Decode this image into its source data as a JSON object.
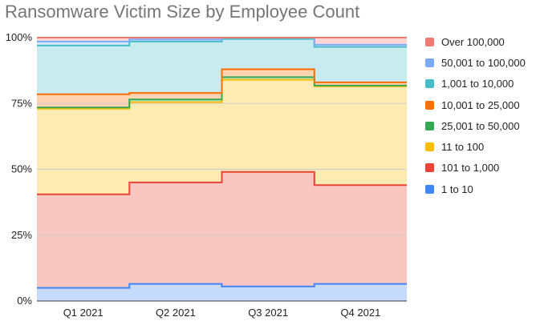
{
  "chart_data": {
    "type": "area",
    "title": "Ransomware Victim Size by Employee Count",
    "step": true,
    "stacked": true,
    "percent": true,
    "categories": [
      "Q1 2021",
      "Q2 2021",
      "Q3 2021",
      "Q4 2021"
    ],
    "yticks": [
      "0%",
      "25%",
      "50%",
      "75%",
      "100%"
    ],
    "ylim": [
      0,
      100
    ],
    "grid": true,
    "legend_position": "right",
    "series": [
      {
        "name": "1 to 10",
        "color": "#4285f4",
        "values": [
          5,
          6.5,
          5.5,
          6.5
        ]
      },
      {
        "name": "101 to 1,000",
        "color": "#ea4335",
        "values": [
          35.5,
          38.5,
          43.5,
          37.5
        ]
      },
      {
        "name": "11 to 100",
        "color": "#fbbc04",
        "values": [
          32.5,
          30.5,
          35,
          37.5
        ]
      },
      {
        "name": "25,001 to 50,000",
        "color": "#34a853",
        "values": [
          0.5,
          1,
          1,
          0.3
        ]
      },
      {
        "name": "10,001 to 25,000",
        "color": "#ff6d01",
        "values": [
          5,
          2.5,
          3,
          1.2
        ]
      },
      {
        "name": "1,001 to 10,000",
        "color": "#46bdc6",
        "values": [
          18.5,
          19.5,
          11.5,
          13.5
        ]
      },
      {
        "name": "50,001 to 100,000",
        "color": "#7baaf7",
        "values": [
          1.5,
          0.8,
          0.5,
          0.8
        ]
      },
      {
        "name": "Over 100,000",
        "color": "#f07b72",
        "values": [
          1.5,
          0.7,
          0,
          2.7
        ]
      }
    ],
    "legend_order": [
      "Over 100,000",
      "50,001 to 100,000",
      "1,001 to 10,000",
      "10,001 to 25,000",
      "25,001 to 50,000",
      "11 to 100",
      "101 to 1,000",
      "1 to 10"
    ]
  }
}
